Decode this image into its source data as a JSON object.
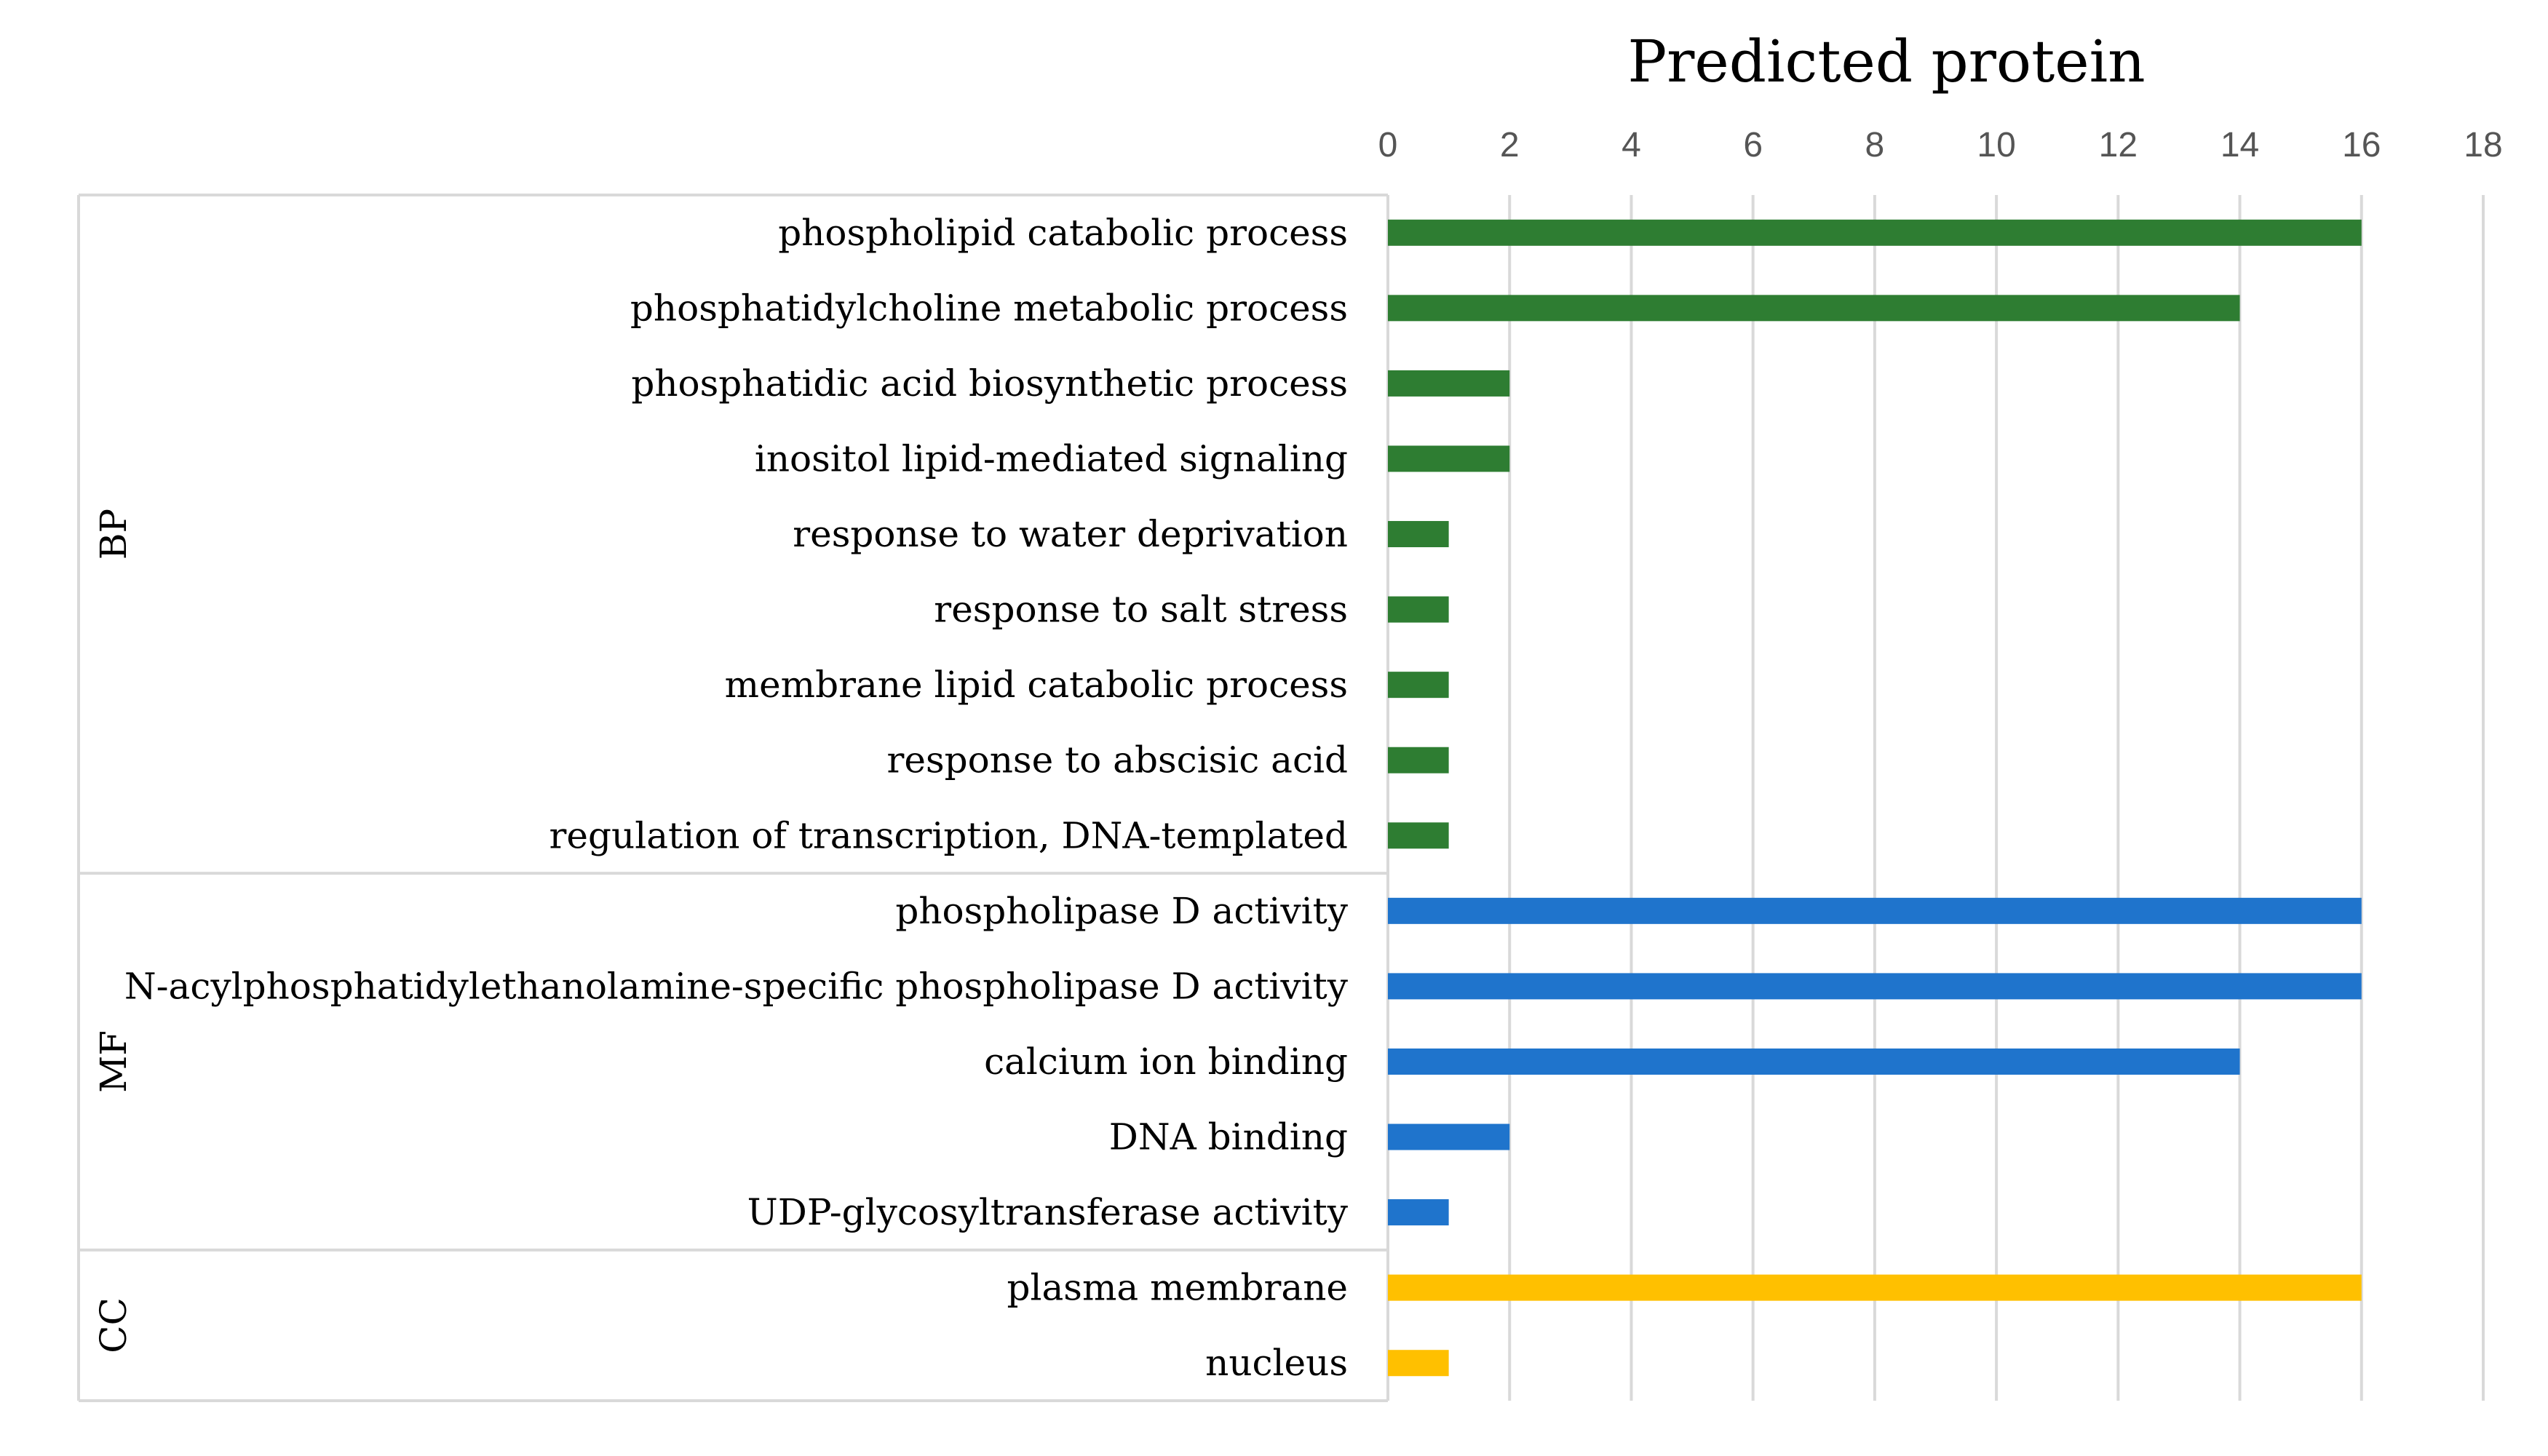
{
  "chart_data": {
    "type": "bar",
    "orientation": "horizontal",
    "title": "Predicted protein",
    "xlabel": "",
    "ylabel": "",
    "xlim": [
      0,
      18
    ],
    "ticks": [
      "0",
      "2",
      "4",
      "6",
      "8",
      "10",
      "12",
      "14",
      "16",
      "18"
    ],
    "grid": true,
    "groups": [
      {
        "name": "BP",
        "color": "#2e7d32",
        "categories": [
          "phospholipid catabolic process",
          "phosphatidylcholine metabolic process",
          "phosphatidic acid biosynthetic process",
          "inositol lipid-mediated signaling",
          "response to water deprivation",
          "response to salt stress",
          "membrane lipid catabolic process",
          "response to abscisic acid",
          "regulation of transcription, DNA-templated"
        ],
        "values": [
          16,
          14,
          2,
          2,
          1,
          1,
          1,
          1,
          1
        ]
      },
      {
        "name": "MF",
        "color": "#1f74cc",
        "categories": [
          "phospholipase D activity",
          "N-acylphosphatidylethanolamine-specific phospholipase D activity",
          "calcium ion binding",
          "DNA binding",
          "UDP-glycosyltransferase activity"
        ],
        "values": [
          16,
          16,
          14,
          2,
          1
        ]
      },
      {
        "name": "CC",
        "color": "#ffc000",
        "categories": [
          "plasma membrane",
          "nucleus"
        ],
        "values": [
          16,
          1
        ]
      }
    ]
  }
}
